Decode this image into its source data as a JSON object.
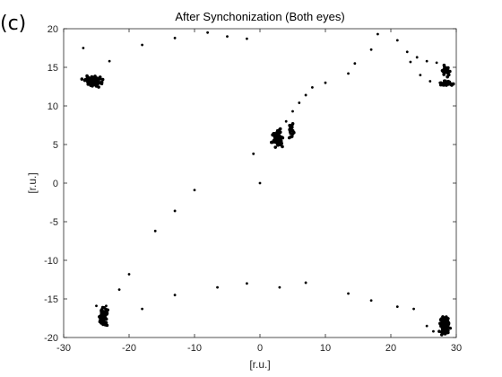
{
  "panel_label": "(c)",
  "chart_data": {
    "type": "scatter",
    "title": "After Synchonization (Both eyes)",
    "xlabel": "[r.u.]",
    "ylabel": "[r.u.]",
    "xlim": [
      -30,
      30
    ],
    "ylim": [
      -20,
      20
    ],
    "xticks": [
      -30,
      -20,
      -10,
      0,
      10,
      20,
      30
    ],
    "yticks": [
      -20,
      -15,
      -10,
      -5,
      0,
      5,
      10,
      15,
      20
    ],
    "grid": false,
    "legend": "none",
    "marker_color": "#000000",
    "series": [
      {
        "points": [
          [
            -27.0,
            17.5
          ],
          [
            -23.0,
            15.8
          ],
          [
            -18.0,
            17.9
          ],
          [
            -13.0,
            18.8
          ],
          [
            -8.0,
            19.5
          ],
          [
            -5.0,
            19.0
          ],
          [
            -2.0,
            18.7
          ],
          [
            17.0,
            17.3
          ],
          [
            18.0,
            19.3
          ],
          [
            21.0,
            18.5
          ],
          [
            22.5,
            17.0
          ],
          [
            24.0,
            16.3
          ],
          [
            25.5,
            15.8
          ],
          [
            27.0,
            15.6
          ],
          [
            26.0,
            13.2
          ],
          [
            27.5,
            13.0
          ],
          [
            23.0,
            15.7
          ],
          [
            24.5,
            14.0
          ],
          [
            -1.0,
            3.8
          ],
          [
            0.0,
            0.0
          ],
          [
            -10.0,
            -0.9
          ],
          [
            -13.0,
            -3.6
          ],
          [
            -16.0,
            -6.2
          ],
          [
            4.0,
            8.0
          ],
          [
            5.0,
            9.3
          ],
          [
            6.0,
            10.4
          ],
          [
            7.0,
            11.4
          ],
          [
            8.0,
            12.4
          ],
          [
            10.0,
            13.0
          ],
          [
            13.5,
            14.2
          ],
          [
            14.5,
            15.5
          ],
          [
            -20.0,
            -11.8
          ],
          [
            -21.5,
            -13.8
          ],
          [
            -25.0,
            -15.9
          ],
          [
            -23.5,
            -15.9
          ],
          [
            -18.0,
            -16.3
          ],
          [
            -13.0,
            -14.5
          ],
          [
            -6.5,
            -13.5
          ],
          [
            -2.0,
            -13.0
          ],
          [
            3.0,
            -13.5
          ],
          [
            7.0,
            -12.9
          ],
          [
            13.5,
            -14.3
          ],
          [
            17.0,
            -15.2
          ],
          [
            21.0,
            -16.0
          ],
          [
            23.5,
            -16.3
          ],
          [
            25.5,
            -18.5
          ],
          [
            26.5,
            -19.2
          ]
        ]
      }
    ],
    "clusters": [
      {
        "center": [
          -25.5,
          13.2
        ],
        "spread": [
          1.3,
          0.6
        ],
        "count": 90
      },
      {
        "center": [
          2.8,
          5.8
        ],
        "spread": [
          0.8,
          1.0
        ],
        "count": 70
      },
      {
        "center": [
          4.8,
          6.6
        ],
        "spread": [
          0.4,
          0.9
        ],
        "count": 20
      },
      {
        "center": [
          28.5,
          14.5
        ],
        "spread": [
          0.5,
          0.6
        ],
        "count": 30
      },
      {
        "center": [
          28.5,
          12.9
        ],
        "spread": [
          1.2,
          0.3
        ],
        "count": 25
      },
      {
        "center": [
          -24.0,
          -17.3
        ],
        "spread": [
          0.6,
          1.1
        ],
        "count": 80
      },
      {
        "center": [
          28.2,
          -18.5
        ],
        "spread": [
          0.7,
          1.2
        ],
        "count": 90
      }
    ]
  }
}
